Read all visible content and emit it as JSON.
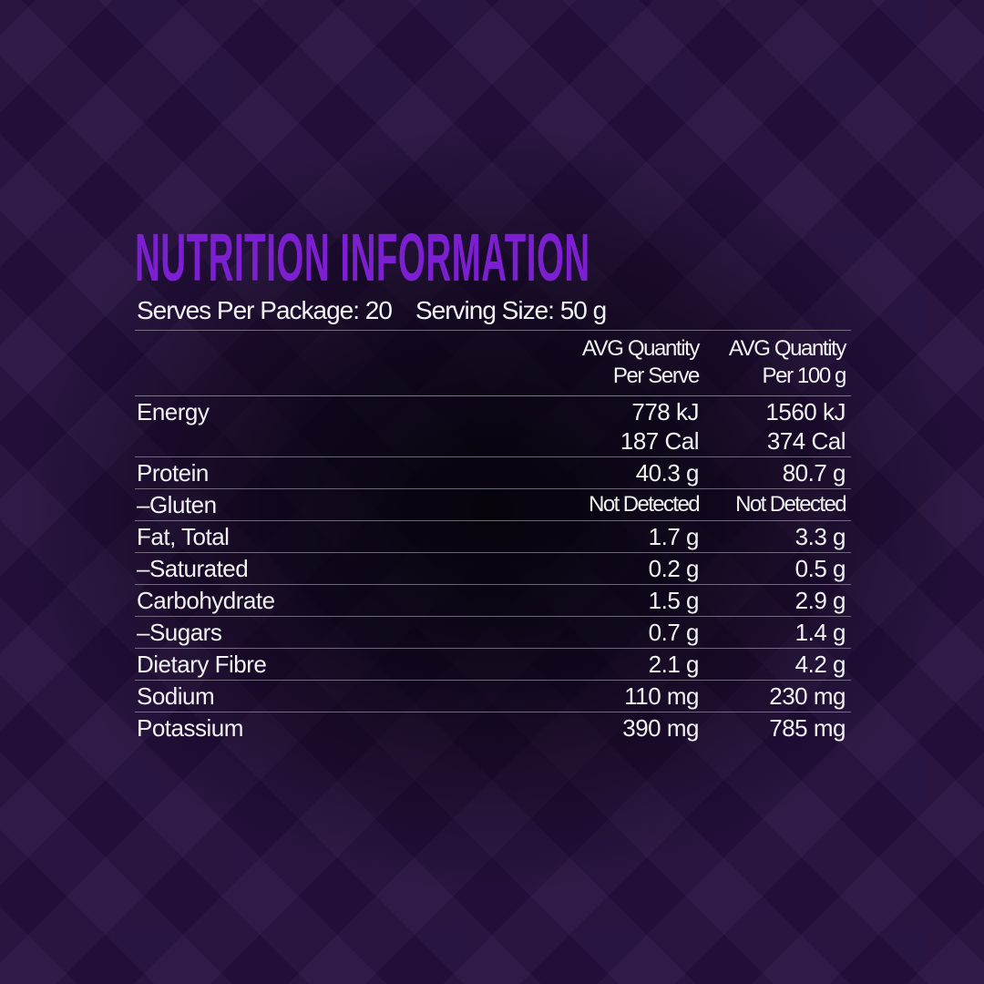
{
  "title": "NUTRITION INFORMATION",
  "serves_per_package": "Serves Per Package: 20",
  "serving_size": "Serving Size: 50 g",
  "columns": {
    "per_serve": [
      "AVG Quantity",
      "Per Serve"
    ],
    "per_100g": [
      "AVG Quantity",
      "Per 100 g"
    ]
  },
  "energy": {
    "name": "Energy",
    "per_serve": [
      "778 kJ",
      "187 Cal"
    ],
    "per_100g": [
      "1560 kJ",
      "374 Cal"
    ]
  },
  "rows": [
    {
      "name": "Protein",
      "per_serve": "40.3 g",
      "per_100g": "80.7 g"
    },
    {
      "name": "–Gluten",
      "per_serve": "Not Detected",
      "per_100g": "Not Detected"
    },
    {
      "name": "Fat, Total",
      "per_serve": "1.7 g",
      "per_100g": "3.3 g"
    },
    {
      "name": "–Saturated",
      "per_serve": "0.2 g",
      "per_100g": "0.5 g"
    },
    {
      "name": "Carbohydrate",
      "per_serve": "1.5 g",
      "per_100g": "2.9 g"
    },
    {
      "name": "–Sugars",
      "per_serve": "0.7 g",
      "per_100g": "1.4 g"
    },
    {
      "name": "Dietary Fibre",
      "per_serve": "2.1 g",
      "per_100g": "4.2 g"
    },
    {
      "name": "Sodium",
      "per_serve": "110 mg",
      "per_100g": "230 mg"
    },
    {
      "name": "Potassium",
      "per_serve": "390 mg",
      "per_100g": "785 mg"
    }
  ],
  "colors": {
    "title": "#7b1fd0",
    "background": "#26103f",
    "text": "#f2f2f2"
  }
}
